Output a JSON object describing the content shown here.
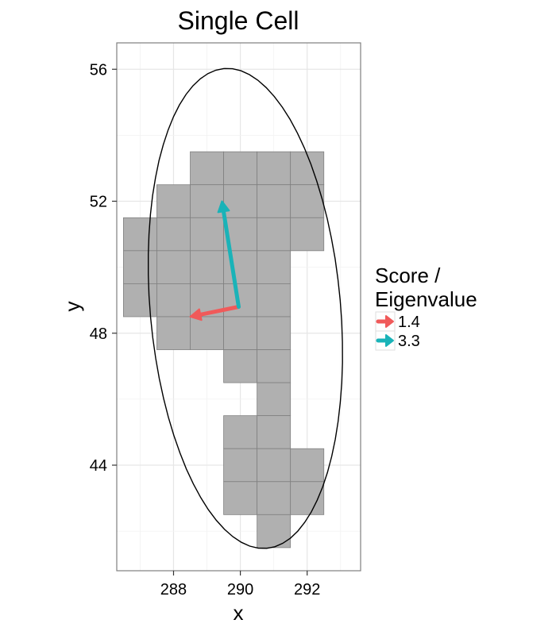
{
  "chart_data": {
    "type": "heatmap",
    "title": "Single Cell",
    "xlabel": "x",
    "ylabel": "y",
    "xlim": [
      286.3,
      293.6
    ],
    "ylim": [
      40.8,
      56.8
    ],
    "x_ticks": [
      288,
      290,
      292
    ],
    "y_ticks": [
      44,
      48,
      52,
      56
    ],
    "grid": true,
    "cell_size": 1,
    "cell_color": "#b0b0b0",
    "cell_edge_color": "#808080",
    "cells": [
      [
        289,
        53
      ],
      [
        290,
        53
      ],
      [
        291,
        53
      ],
      [
        292,
        53
      ],
      [
        288,
        52
      ],
      [
        289,
        52
      ],
      [
        290,
        52
      ],
      [
        291,
        52
      ],
      [
        292,
        52
      ],
      [
        287,
        51
      ],
      [
        288,
        51
      ],
      [
        289,
        51
      ],
      [
        290,
        51
      ],
      [
        291,
        51
      ],
      [
        292,
        51
      ],
      [
        287,
        50
      ],
      [
        288,
        50
      ],
      [
        289,
        50
      ],
      [
        290,
        50
      ],
      [
        291,
        50
      ],
      [
        287,
        49
      ],
      [
        288,
        49
      ],
      [
        289,
        49
      ],
      [
        290,
        49
      ],
      [
        291,
        49
      ],
      [
        288,
        48
      ],
      [
        289,
        48
      ],
      [
        290,
        48
      ],
      [
        291,
        48
      ],
      [
        290,
        47
      ],
      [
        291,
        47
      ],
      [
        291,
        46
      ],
      [
        290,
        45
      ],
      [
        291,
        45
      ],
      [
        290,
        44
      ],
      [
        291,
        44
      ],
      [
        292,
        44
      ],
      [
        290,
        43
      ],
      [
        291,
        43
      ],
      [
        292,
        43
      ],
      [
        291,
        42
      ]
    ],
    "ellipse": {
      "center": [
        290.15,
        48.75
      ],
      "semi_major": 7.3,
      "semi_minor": 2.85,
      "angle_deg": 95
    },
    "arrows": [
      {
        "label": "1.4",
        "color": "#f05a5a",
        "from": [
          289.95,
          48.8
        ],
        "to": [
          288.5,
          48.5
        ]
      },
      {
        "label": "3.3",
        "color": "#1ab3b8",
        "from": [
          289.95,
          48.8
        ],
        "to": [
          289.45,
          52.0
        ]
      }
    ],
    "legend": {
      "title_lines": [
        "Score /",
        "Eigenvalue"
      ],
      "placement": "right",
      "entries": [
        {
          "label": "1.4",
          "color": "#f05a5a"
        },
        {
          "label": "3.3",
          "color": "#1ab3b8"
        }
      ]
    }
  }
}
